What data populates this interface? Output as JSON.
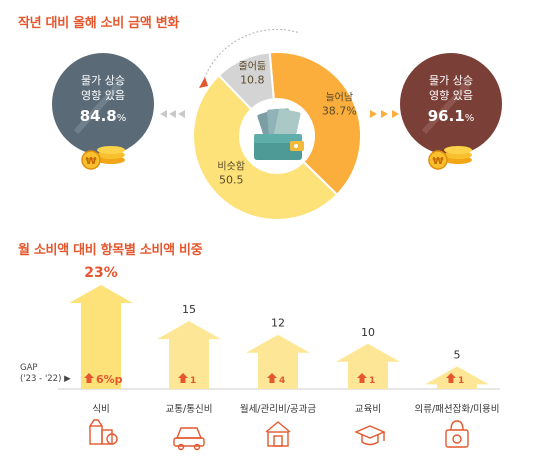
{
  "section1": {
    "title": "작년 대비 올해 소비 금액 변화",
    "left_circle": {
      "line1": "물가 상승",
      "line2": "영향 있음",
      "value": "84.8",
      "unit": "%"
    },
    "right_circle": {
      "line1": "물가 상승",
      "line2": "영향 있음",
      "value": "96.1",
      "unit": "%"
    }
  },
  "section2": {
    "title": "월 소비액 대비 항목별 소비액 비중",
    "gap_label_line1": "GAP",
    "gap_label_line2": "('23 - '22)"
  },
  "colors": {
    "accent": "#e4572e",
    "orange": "#fbae3c",
    "yellow": "#fde27a",
    "gray": "#d4d4d4",
    "slate": "#5a6b77",
    "brown": "#7a3f37",
    "arrow_light": "#fde796"
  },
  "chart_data": [
    {
      "type": "pie",
      "variant": "donut",
      "slices": [
        {
          "label": "늘어남",
          "value": 38.7,
          "value_text": "38.7%",
          "color": "#fbae3c"
        },
        {
          "label": "비슷함",
          "value": 50.5,
          "value_text": "50.5",
          "color": "#fde27a"
        },
        {
          "label": "줄어듦",
          "value": 10.8,
          "value_text": "10.8",
          "color": "#d4d4d4"
        }
      ],
      "center_icon": "wallet-money-icon"
    },
    {
      "type": "bar",
      "variant": "arrow-bars",
      "categories": [
        "식비",
        "교통/통신비",
        "월세/관리비/공과금",
        "교육비",
        "의류/패션잡화/미용비"
      ],
      "values": [
        23,
        15,
        12,
        10,
        5
      ],
      "value_labels": [
        "23%",
        "15",
        "12",
        "10",
        "5"
      ],
      "gap_values": [
        6,
        1,
        4,
        1,
        1
      ],
      "gap_labels": [
        "6%p",
        "1",
        "4",
        "1",
        "1"
      ],
      "icons": [
        "grocery-icon",
        "car-phone-icon",
        "house-icon",
        "graduation-icon",
        "shopping-bag-icon"
      ],
      "ylim": [
        0,
        23
      ]
    }
  ]
}
